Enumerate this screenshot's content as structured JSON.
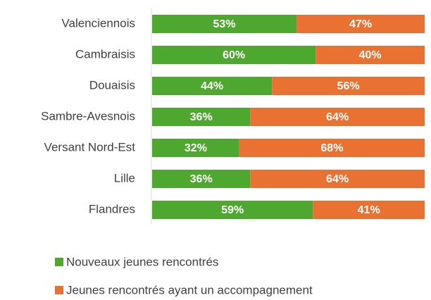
{
  "chart_data": {
    "type": "stacked-bar-horizontal",
    "categories": [
      "Valenciennois",
      "Cambraisis",
      "Douaisis",
      "Sambre-Avesnois",
      "Versant Nord-Est",
      "Lille",
      "Flandres"
    ],
    "series": [
      {
        "name": "Nouveaux jeunes rencontrés",
        "color": "#4ea72e",
        "values": [
          53,
          60,
          44,
          36,
          32,
          36,
          59
        ],
        "value_labels": [
          "53%",
          "60%",
          "44%",
          "36%",
          "32%",
          "36%",
          "59%"
        ]
      },
      {
        "name": "Jeunes rencontrés ayant un accompagnement",
        "color": "#e97132",
        "values": [
          47,
          40,
          56,
          64,
          68,
          64,
          41
        ],
        "value_labels": [
          "47%",
          "40%",
          "56%",
          "64%",
          "68%",
          "64%",
          "41%"
        ]
      }
    ],
    "xlim": [
      0,
      100
    ],
    "legend": "bottom"
  }
}
